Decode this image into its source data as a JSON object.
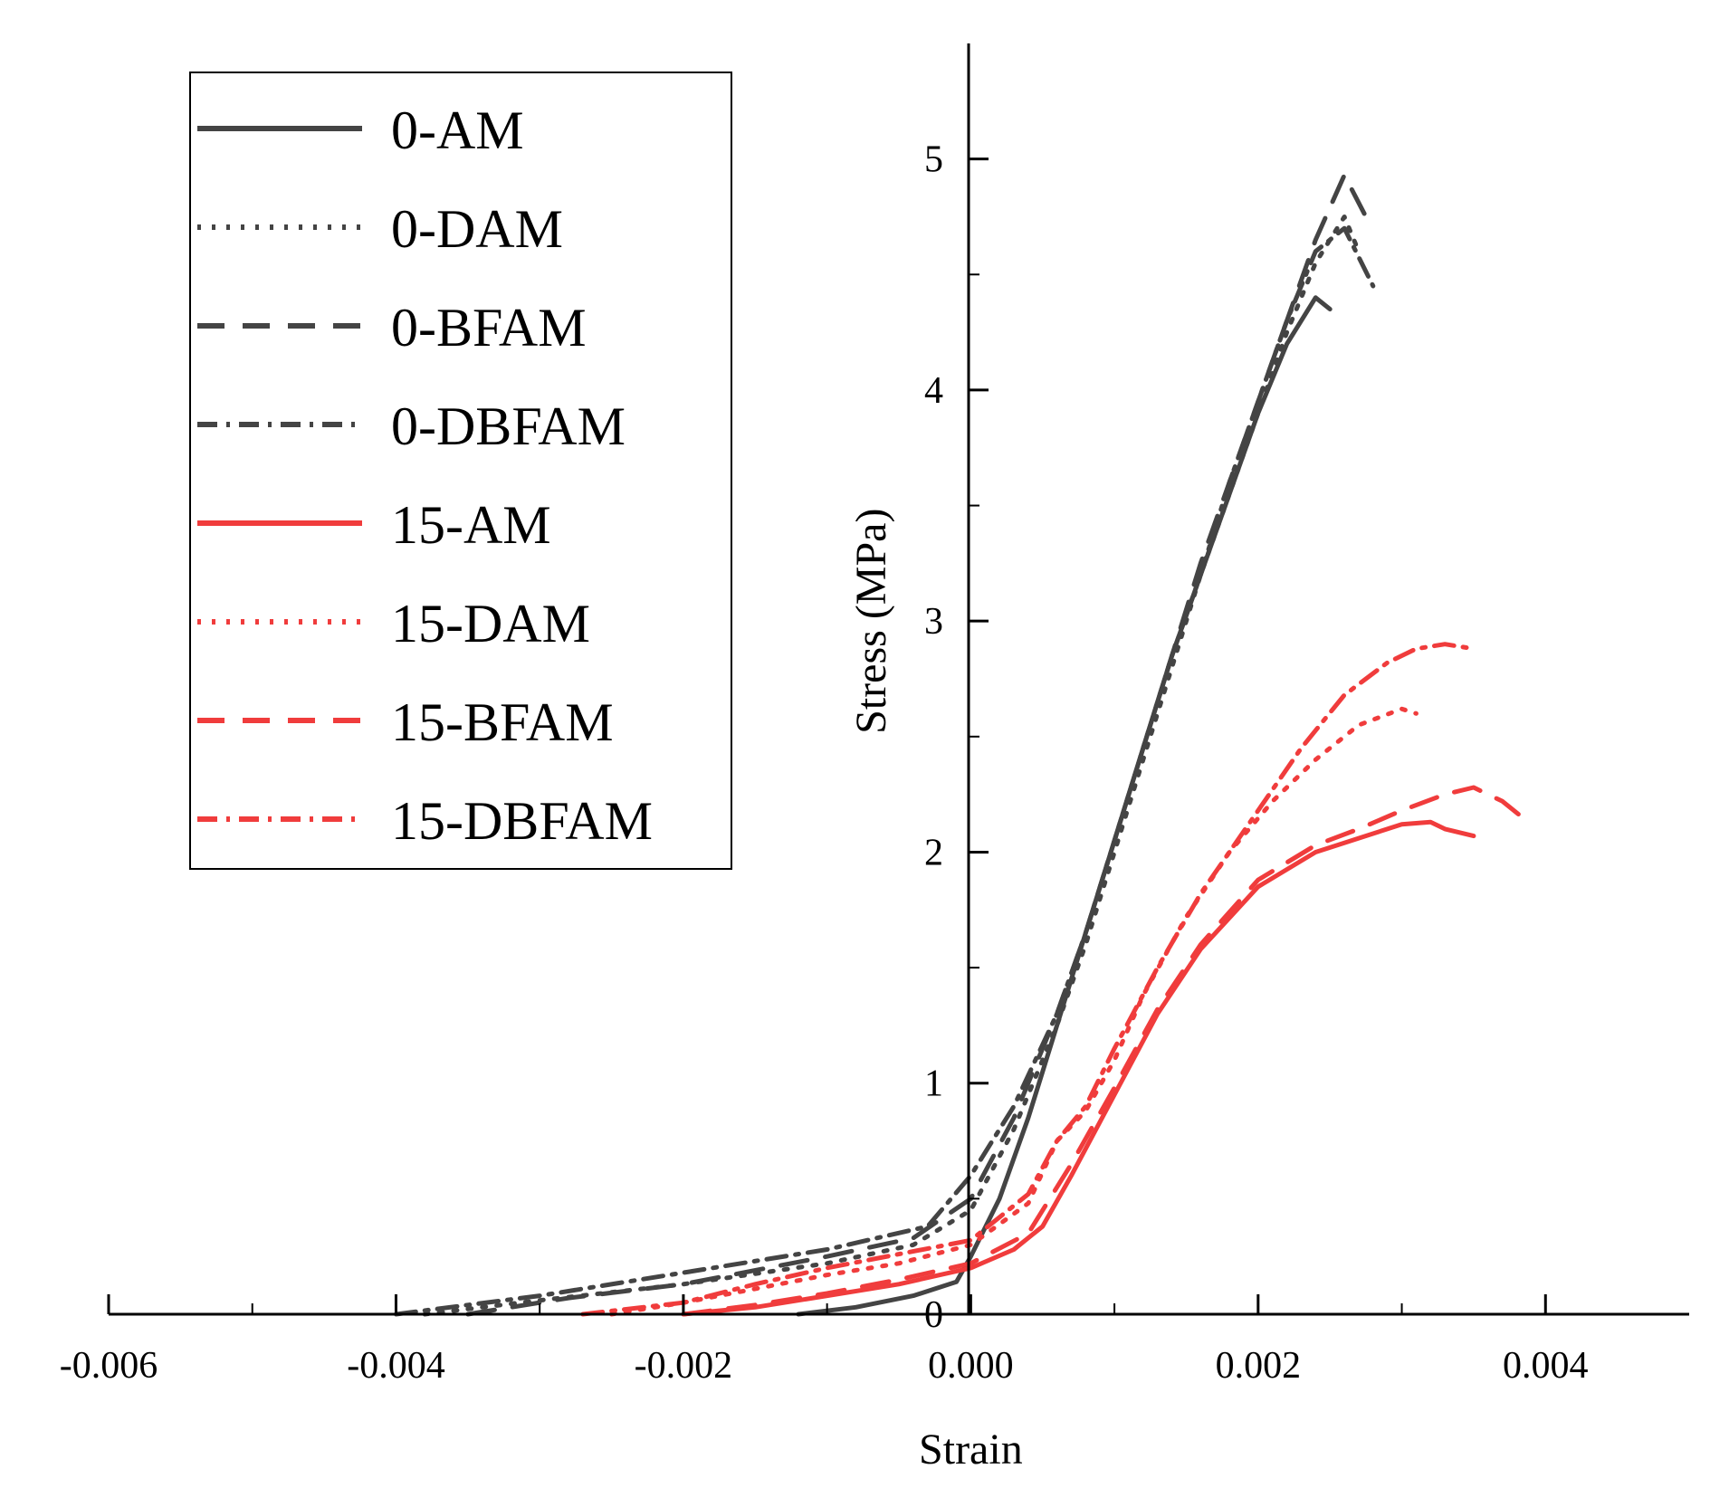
{
  "chart_data": {
    "type": "line",
    "title": "",
    "xlabel": "Strain",
    "ylabel": "Stress (MPa)",
    "xlim": [
      -0.006,
      0.005
    ],
    "ylim": [
      0,
      5.5
    ],
    "x_ticks": [
      -0.006,
      -0.004,
      -0.002,
      0.0,
      0.002,
      0.004
    ],
    "x_tick_labels": [
      "-0.006",
      "-0.004",
      "-0.002",
      "0.000",
      "0.002",
      "0.004"
    ],
    "y_ticks": [
      0,
      1,
      2,
      3,
      4,
      5
    ],
    "y_tick_labels": [
      "0",
      "1",
      "2",
      "3",
      "4",
      "5"
    ],
    "grid": false,
    "legend_position": "top-left",
    "series": [
      {
        "name": "0-AM",
        "color": "#444444",
        "dash": "solid",
        "x": [
          -0.0012,
          -0.0008,
          -0.0004,
          -0.0001,
          0.0,
          0.0002,
          0.0004,
          0.0006,
          0.0008,
          0.001,
          0.0012,
          0.0014,
          0.0016,
          0.0018,
          0.002,
          0.0022,
          0.0024,
          0.0025
        ],
        "y": [
          0.0,
          0.03,
          0.08,
          0.14,
          0.25,
          0.5,
          0.85,
          1.25,
          1.65,
          2.05,
          2.45,
          2.85,
          3.2,
          3.55,
          3.9,
          4.2,
          4.4,
          4.35
        ]
      },
      {
        "name": "0-DAM",
        "color": "#444444",
        "dash": "dotted",
        "x": [
          -0.0038,
          -0.003,
          -0.002,
          -0.001,
          -0.0004,
          0.0,
          0.0003,
          0.0006,
          0.0008,
          0.001,
          0.0012,
          0.0014,
          0.0016,
          0.0018,
          0.002,
          0.0022,
          0.0024,
          0.0026,
          0.0027
        ],
        "y": [
          0.0,
          0.06,
          0.13,
          0.22,
          0.3,
          0.45,
          0.8,
          1.25,
          1.6,
          2.0,
          2.4,
          2.8,
          3.2,
          3.55,
          3.9,
          4.25,
          4.55,
          4.75,
          4.6
        ]
      },
      {
        "name": "0-BFAM",
        "color": "#444444",
        "dash": "dashed",
        "x": [
          -0.0035,
          -0.0028,
          -0.002,
          -0.001,
          -0.0004,
          0.0,
          0.0003,
          0.0006,
          0.0008,
          0.001,
          0.0012,
          0.0014,
          0.0016,
          0.0018,
          0.002,
          0.0022,
          0.0024,
          0.0026,
          0.00275
        ],
        "y": [
          0.0,
          0.07,
          0.13,
          0.25,
          0.33,
          0.5,
          0.85,
          1.3,
          1.65,
          2.05,
          2.45,
          2.85,
          3.25,
          3.6,
          3.95,
          4.3,
          4.65,
          4.93,
          4.75
        ]
      },
      {
        "name": "0-DBFAM",
        "color": "#444444",
        "dash": "dashdot",
        "x": [
          -0.004,
          -0.003,
          -0.002,
          -0.001,
          -0.0003,
          0.0,
          0.0003,
          0.0006,
          0.0008,
          0.001,
          0.0012,
          0.0014,
          0.0016,
          0.0018,
          0.002,
          0.0022,
          0.0024,
          0.0026,
          0.0028
        ],
        "y": [
          0.0,
          0.08,
          0.18,
          0.28,
          0.38,
          0.6,
          0.9,
          1.3,
          1.65,
          2.05,
          2.45,
          2.85,
          3.2,
          3.6,
          3.95,
          4.3,
          4.6,
          4.7,
          4.45
        ]
      },
      {
        "name": "15-AM",
        "color": "#f03c3c",
        "dash": "solid",
        "x": [
          -0.002,
          -0.0015,
          -0.001,
          -0.0005,
          0.0,
          0.0003,
          0.0005,
          0.0007,
          0.001,
          0.0013,
          0.0016,
          0.002,
          0.0024,
          0.0028,
          0.003,
          0.0032,
          0.0033,
          0.0035
        ],
        "y": [
          0.0,
          0.03,
          0.08,
          0.13,
          0.2,
          0.28,
          0.38,
          0.6,
          0.95,
          1.3,
          1.58,
          1.85,
          2.0,
          2.08,
          2.12,
          2.13,
          2.1,
          2.07
        ]
      },
      {
        "name": "15-DAM",
        "color": "#f03c3c",
        "dash": "dotted",
        "x": [
          -0.0025,
          -0.002,
          -0.0015,
          -0.001,
          -0.0005,
          0.0,
          0.0004,
          0.0006,
          0.0008,
          0.001,
          0.0012,
          0.0015,
          0.0018,
          0.0021,
          0.0024,
          0.0027,
          0.003,
          0.0031
        ],
        "y": [
          0.0,
          0.05,
          0.11,
          0.17,
          0.22,
          0.3,
          0.48,
          0.75,
          0.88,
          1.1,
          1.38,
          1.72,
          2.0,
          2.22,
          2.4,
          2.55,
          2.62,
          2.6
        ]
      },
      {
        "name": "15-BFAM",
        "color": "#f03c3c",
        "dash": "dashed",
        "x": [
          -0.002,
          -0.0015,
          -0.001,
          -0.0005,
          0.0,
          0.0004,
          0.0007,
          0.001,
          0.0013,
          0.0016,
          0.002,
          0.0024,
          0.0027,
          0.003,
          0.0033,
          0.0035,
          0.0037,
          0.0039
        ],
        "y": [
          0.0,
          0.04,
          0.09,
          0.15,
          0.22,
          0.35,
          0.65,
          0.98,
          1.32,
          1.6,
          1.88,
          2.03,
          2.1,
          2.18,
          2.25,
          2.28,
          2.22,
          2.12
        ]
      },
      {
        "name": "15-DBFAM",
        "color": "#f03c3c",
        "dash": "dashdot",
        "x": [
          -0.0027,
          -0.002,
          -0.0015,
          -0.001,
          -0.0005,
          0.0,
          0.0004,
          0.0006,
          0.0008,
          0.001,
          0.0013,
          0.0016,
          0.002,
          0.0023,
          0.0026,
          0.0029,
          0.0031,
          0.0033,
          0.0035
        ],
        "y": [
          0.0,
          0.05,
          0.13,
          0.2,
          0.26,
          0.32,
          0.52,
          0.75,
          0.9,
          1.15,
          1.5,
          1.82,
          2.18,
          2.45,
          2.68,
          2.82,
          2.88,
          2.9,
          2.88
        ]
      }
    ]
  }
}
